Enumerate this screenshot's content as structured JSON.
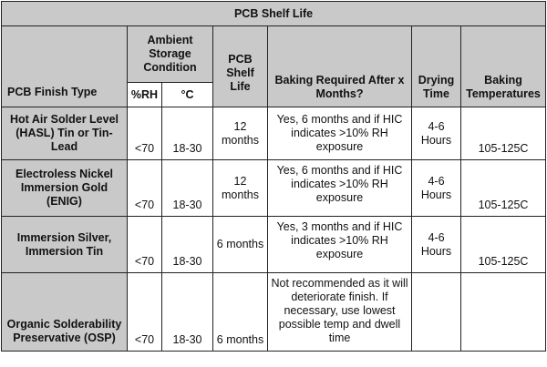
{
  "title": "PCB Shelf Life",
  "headers": {
    "finish_type": "PCB Finish Type",
    "ambient": "Ambient Storage Condition",
    "rh": "%RH",
    "temp": "°C",
    "shelf_life": "PCB Shelf Life",
    "baking_required": "Baking Required After x Months?",
    "drying_time": "Drying Time",
    "baking_temps": "Baking Temperatures"
  },
  "rows": [
    {
      "finish": "Hot Air Solder Level (HASL) Tin or Tin-Lead",
      "rh": "<70",
      "temp": "18-30",
      "shelf_life": "12 months",
      "baking": "Yes, 6 months and if HIC indicates >10% RH exposure",
      "drying": "4-6 Hours",
      "baking_temp": "105-125C"
    },
    {
      "finish": "Electroless Nickel Immersion Gold (ENIG)",
      "rh": "<70",
      "temp": "18-30",
      "shelf_life": "12 months",
      "baking": "Yes, 6 months and if HIC indicates >10% RH exposure",
      "drying": "4-6 Hours",
      "baking_temp": "105-125C"
    },
    {
      "finish": "Immersion Silver, Immersion Tin",
      "rh": "<70",
      "temp": "18-30",
      "shelf_life": "6 months",
      "baking": "Yes, 3 months and if HIC indicates >10% RH exposure",
      "drying": "4-6 Hours",
      "baking_temp": "105-125C"
    },
    {
      "finish": "Organic Solderability Preservative (OSP)",
      "rh": "<70",
      "temp": "18-30",
      "shelf_life": "6 months",
      "baking": "Not recommended as it will deteriorate finish. If necessary, use lowest possible temp and dwell time",
      "drying": "",
      "baking_temp": ""
    }
  ]
}
